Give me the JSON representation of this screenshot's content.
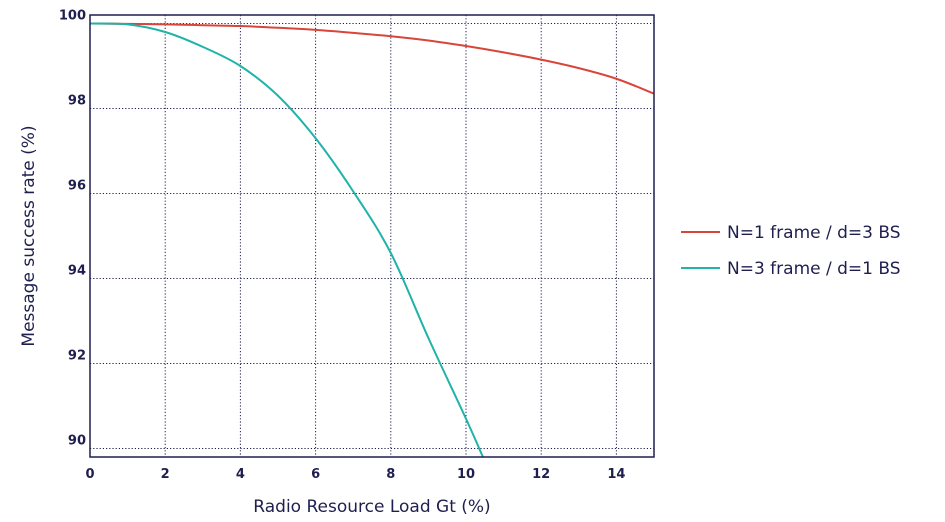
{
  "chart_data": {
    "type": "line",
    "title": "",
    "xlabel": "Radio Resource Load Gt (%)",
    "ylabel": "Message success rate (%)",
    "xlim": [
      0,
      15
    ],
    "ylim": [
      89.8,
      100.2
    ],
    "x_ticks": [
      0,
      2,
      4,
      6,
      8,
      10,
      12,
      14
    ],
    "y_ticks": [
      90,
      92,
      94,
      96,
      98,
      100
    ],
    "x_tick_labels": [
      "0",
      "2",
      "4",
      "6",
      "8",
      "10",
      "12",
      "14"
    ],
    "y_tick_labels": [
      "90",
      "92",
      "94",
      "96",
      "98",
      "100"
    ],
    "grid": true,
    "legend_position": "right",
    "series": [
      {
        "name": "N=1 frame / d=3 BS",
        "color": "#d9453a",
        "x": [
          0,
          1,
          2,
          3,
          4,
          5,
          6,
          7,
          8,
          9,
          10,
          11,
          12,
          13,
          14,
          15
        ],
        "y": [
          100.0,
          99.99,
          99.98,
          99.96,
          99.94,
          99.9,
          99.85,
          99.78,
          99.7,
          99.6,
          99.47,
          99.32,
          99.15,
          98.95,
          98.7,
          98.35
        ]
      },
      {
        "name": "N=3 frame / d=1 BS",
        "color": "#1fb3a9",
        "x": [
          0,
          1,
          2,
          3,
          4,
          5,
          6,
          7,
          8,
          9,
          10,
          10.45
        ],
        "y": [
          100.0,
          99.98,
          99.8,
          99.45,
          99.0,
          98.3,
          97.3,
          96.05,
          94.6,
          92.6,
          90.7,
          89.8
        ]
      }
    ]
  },
  "colors": {
    "axis": "#1e1f4f",
    "text": "#1e1f4f",
    "grid": "#1e1f4f"
  }
}
